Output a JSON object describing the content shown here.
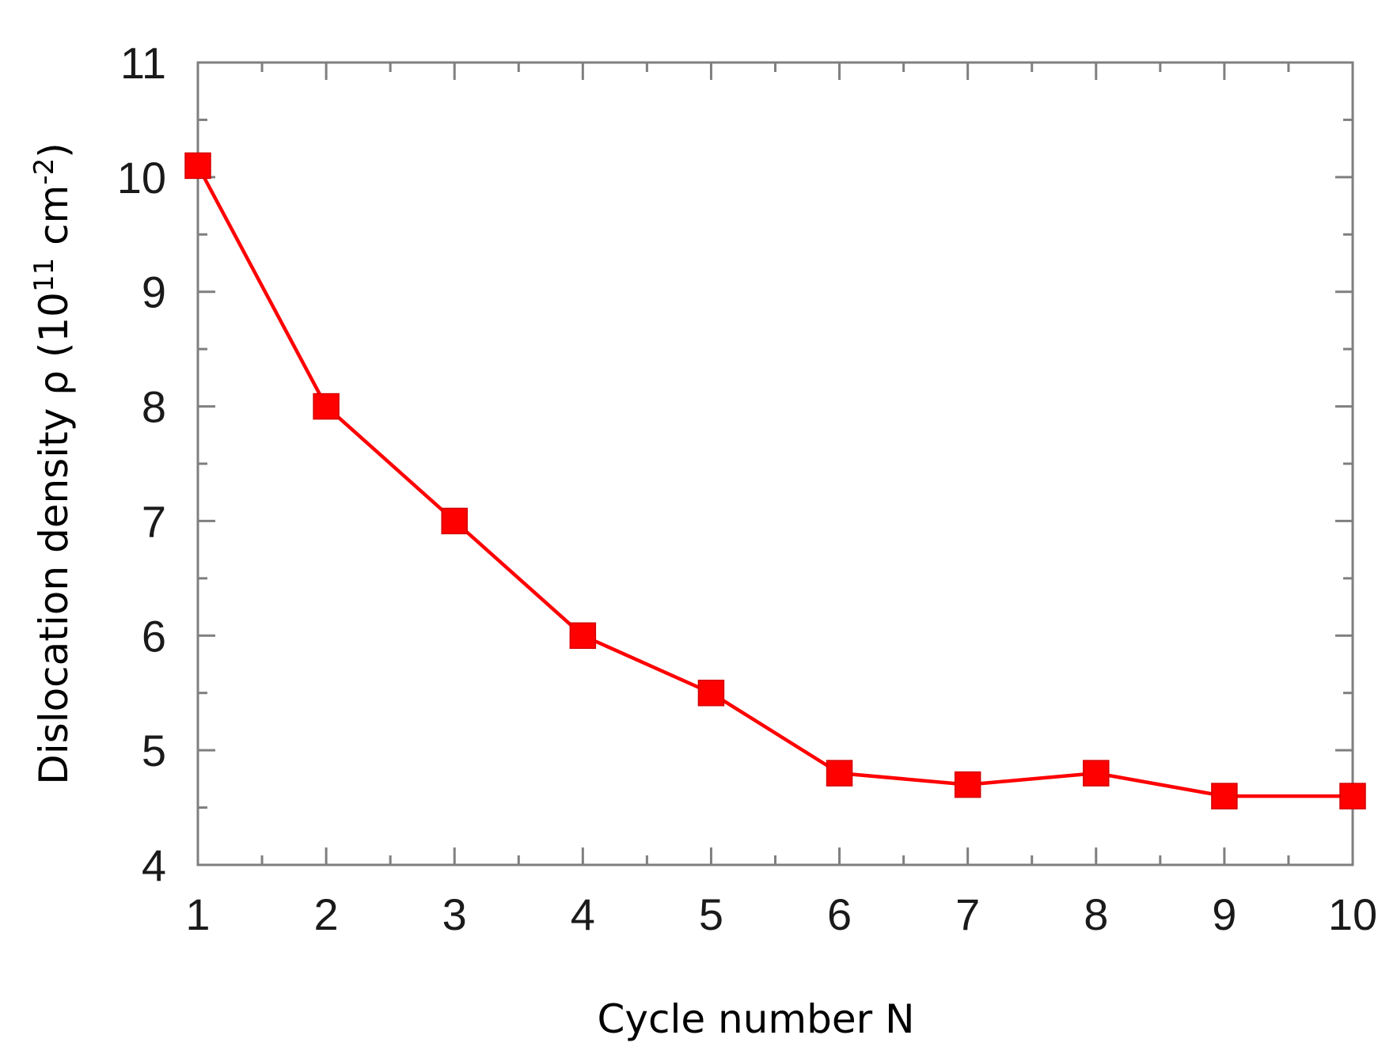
{
  "chart_data": {
    "type": "line",
    "xlabel": "Cycle number N",
    "ylabel": {
      "prefix": "Dislocation density ρ (10",
      "exponent": "11",
      "mid": " cm",
      "exponent2": "-2",
      "suffix": ")"
    },
    "xlim": [
      1,
      10
    ],
    "ylim": [
      4,
      11
    ],
    "xticks": [
      "1",
      "2",
      "3",
      "4",
      "5",
      "6",
      "7",
      "8",
      "9",
      "10"
    ],
    "yticks": [
      "4",
      "5",
      "6",
      "7",
      "8",
      "9",
      "10",
      "11"
    ],
    "grid": false,
    "legend": false,
    "marker": "square",
    "color": "#ff0000",
    "series": [
      {
        "x": [
          1,
          2,
          3,
          4,
          5,
          6,
          7,
          8,
          9,
          10
        ],
        "values": [
          10.1,
          8.0,
          7.0,
          6.0,
          5.5,
          4.8,
          4.7,
          4.8,
          4.6,
          4.6
        ]
      }
    ]
  }
}
